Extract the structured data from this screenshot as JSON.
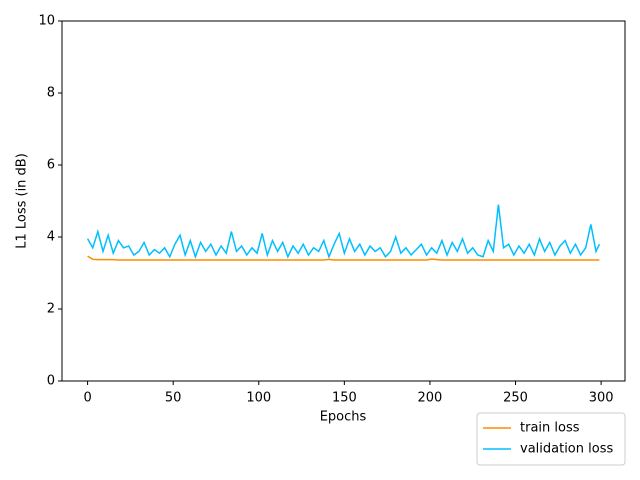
{
  "chart_data": {
    "type": "line",
    "xlabel": "Epochs",
    "ylabel": "L1 Loss (in dB)",
    "x": [
      0,
      3,
      6,
      9,
      12,
      15,
      18,
      21,
      24,
      27,
      30,
      33,
      36,
      39,
      42,
      45,
      48,
      51,
      54,
      57,
      60,
      63,
      66,
      69,
      72,
      75,
      78,
      81,
      84,
      87,
      90,
      93,
      96,
      99,
      102,
      105,
      108,
      111,
      114,
      117,
      120,
      123,
      126,
      129,
      132,
      135,
      138,
      141,
      144,
      147,
      150,
      153,
      156,
      159,
      162,
      165,
      168,
      171,
      174,
      177,
      180,
      183,
      186,
      189,
      192,
      195,
      198,
      201,
      204,
      207,
      210,
      213,
      216,
      219,
      222,
      225,
      228,
      231,
      234,
      237,
      240,
      243,
      246,
      249,
      252,
      255,
      258,
      261,
      264,
      267,
      270,
      273,
      276,
      279,
      282,
      285,
      288,
      291,
      294,
      297,
      299
    ],
    "series": [
      {
        "name": "train loss",
        "color": "#ff8c00",
        "values": [
          3.47,
          3.38,
          3.37,
          3.37,
          3.37,
          3.37,
          3.36,
          3.36,
          3.36,
          3.36,
          3.36,
          3.36,
          3.36,
          3.36,
          3.36,
          3.36,
          3.36,
          3.36,
          3.36,
          3.36,
          3.36,
          3.36,
          3.36,
          3.36,
          3.36,
          3.36,
          3.36,
          3.36,
          3.36,
          3.36,
          3.36,
          3.36,
          3.36,
          3.36,
          3.36,
          3.36,
          3.36,
          3.36,
          3.36,
          3.36,
          3.36,
          3.36,
          3.36,
          3.36,
          3.36,
          3.36,
          3.36,
          3.38,
          3.36,
          3.36,
          3.36,
          3.36,
          3.36,
          3.36,
          3.36,
          3.36,
          3.36,
          3.36,
          3.36,
          3.36,
          3.36,
          3.36,
          3.36,
          3.36,
          3.36,
          3.36,
          3.36,
          3.39,
          3.37,
          3.36,
          3.36,
          3.36,
          3.36,
          3.36,
          3.36,
          3.36,
          3.36,
          3.36,
          3.36,
          3.36,
          3.36,
          3.36,
          3.36,
          3.36,
          3.36,
          3.36,
          3.36,
          3.36,
          3.36,
          3.36,
          3.36,
          3.36,
          3.36,
          3.36,
          3.36,
          3.36,
          3.36,
          3.36,
          3.36,
          3.36,
          3.36
        ]
      },
      {
        "name": "validation loss",
        "color": "#00bfff",
        "values": [
          3.95,
          3.7,
          4.15,
          3.6,
          4.05,
          3.55,
          3.9,
          3.7,
          3.75,
          3.5,
          3.6,
          3.85,
          3.5,
          3.65,
          3.55,
          3.7,
          3.45,
          3.8,
          4.05,
          3.5,
          3.9,
          3.45,
          3.85,
          3.6,
          3.8,
          3.5,
          3.75,
          3.55,
          4.15,
          3.6,
          3.75,
          3.5,
          3.7,
          3.55,
          4.1,
          3.5,
          3.9,
          3.6,
          3.85,
          3.45,
          3.75,
          3.55,
          3.8,
          3.5,
          3.7,
          3.6,
          3.9,
          3.45,
          3.8,
          4.1,
          3.55,
          3.95,
          3.6,
          3.8,
          3.5,
          3.75,
          3.6,
          3.7,
          3.45,
          3.6,
          4.0,
          3.55,
          3.7,
          3.5,
          3.65,
          3.8,
          3.5,
          3.7,
          3.55,
          3.9,
          3.5,
          3.85,
          3.6,
          3.95,
          3.55,
          3.7,
          3.5,
          3.45,
          3.9,
          3.6,
          4.9,
          3.7,
          3.8,
          3.5,
          3.75,
          3.55,
          3.8,
          3.5,
          3.95,
          3.6,
          3.85,
          3.5,
          3.75,
          3.9,
          3.55,
          3.8,
          3.5,
          3.7,
          4.35,
          3.6,
          3.8
        ]
      }
    ],
    "xlim": [
      -14.95,
      313.95
    ],
    "ylim": [
      0,
      10
    ],
    "xticks": [
      0,
      50,
      100,
      150,
      200,
      250,
      300
    ],
    "yticks": [
      0,
      2,
      4,
      6,
      8,
      10
    ],
    "legend": "lower right"
  }
}
